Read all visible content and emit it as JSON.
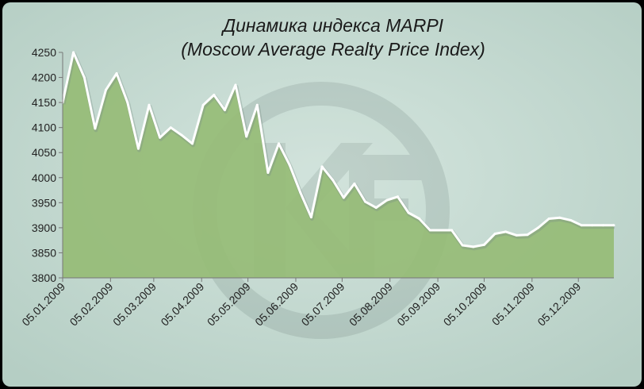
{
  "chart_data": {
    "type": "area",
    "title": "Динамика индекса MARPI",
    "subtitle": "(Moscow Average Realty Price Index)",
    "xlabel": "",
    "ylabel": "",
    "ylim": [
      3800,
      4250
    ],
    "yticks": [
      "4250",
      "4200",
      "4150",
      "4100",
      "4050",
      "4000",
      "3950",
      "3900",
      "3850",
      "3800"
    ],
    "xtick_labels": [
      "05.01.2009",
      "05.02.2009",
      "05.03.2009",
      "05.04.2009",
      "05.05.2009",
      "05.06.2009",
      "05.07.2009",
      "05.08.2009",
      "05.09.2009",
      "05.10.2009",
      "05.11.2009",
      "05.12.2009"
    ],
    "x_range": [
      "2009-01-05",
      "2009-12-28"
    ],
    "grid": false,
    "legend": "none",
    "colors": {
      "fill": "#96bc76",
      "line": "#ffffff",
      "background": "#c3d9d0",
      "border": "#000000"
    },
    "watermark": "KF logo",
    "series": [
      {
        "x": [
          "2009-01-05",
          "2009-01-12",
          "2009-01-19",
          "2009-01-26",
          "2009-02-02",
          "2009-02-09",
          "2009-02-16",
          "2009-02-23",
          "2009-03-02",
          "2009-03-09",
          "2009-03-16",
          "2009-03-23",
          "2009-03-30",
          "2009-04-06",
          "2009-04-13",
          "2009-04-20",
          "2009-04-27",
          "2009-05-04",
          "2009-05-11",
          "2009-05-18",
          "2009-05-25",
          "2009-06-01",
          "2009-06-08",
          "2009-06-15",
          "2009-06-22",
          "2009-06-29",
          "2009-07-06",
          "2009-07-13",
          "2009-07-20",
          "2009-07-27",
          "2009-08-03",
          "2009-08-10",
          "2009-08-17",
          "2009-08-24",
          "2009-08-31",
          "2009-09-07",
          "2009-09-14",
          "2009-09-21",
          "2009-09-28",
          "2009-10-05",
          "2009-10-12",
          "2009-10-19",
          "2009-10-26",
          "2009-11-02",
          "2009-11-09",
          "2009-11-16",
          "2009-11-23",
          "2009-11-30",
          "2009-12-07",
          "2009-12-14",
          "2009-12-21",
          "2009-12-28"
        ],
        "values": [
          4150,
          4250,
          4200,
          4098,
          4175,
          4208,
          4150,
          4058,
          4145,
          4080,
          4100,
          4085,
          4068,
          4145,
          4165,
          4135,
          4185,
          4082,
          4145,
          4010,
          4068,
          4025,
          3970,
          3921,
          4022,
          3995,
          3960,
          3988,
          3952,
          3940,
          3955,
          3962,
          3930,
          3918,
          3895,
          3895,
          3895,
          3865,
          3862,
          3866,
          3888,
          3892,
          3885,
          3886,
          3900,
          3918,
          3920,
          3915,
          3905,
          3905,
          3905,
          3905
        ]
      }
    ]
  }
}
